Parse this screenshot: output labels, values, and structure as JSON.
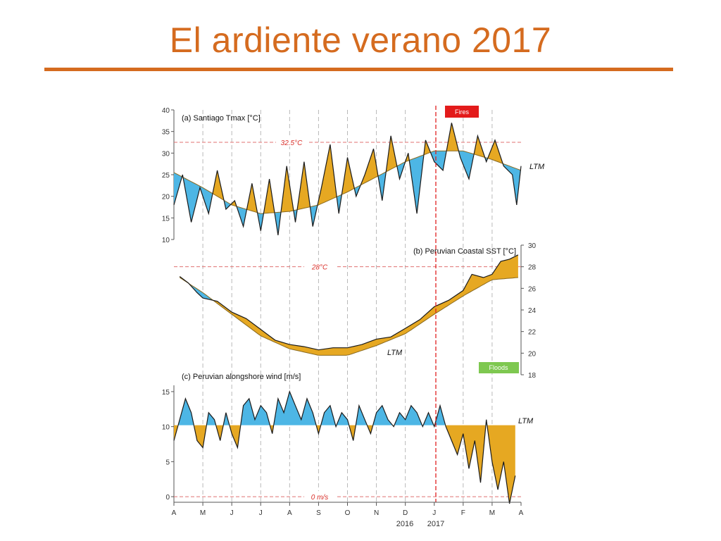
{
  "slide": {
    "title": "El ardiente verano 2017",
    "accent_color": "#d56b1f"
  },
  "chart_data": [
    {
      "id": "a",
      "type": "line",
      "title": "(a) Santiago Tmax  [°C]",
      "ylim": [
        10,
        40
      ],
      "yticks": [
        10,
        15,
        20,
        25,
        30,
        35,
        40
      ],
      "threshold": {
        "value": 32.5,
        "label": "32.5°C"
      },
      "ltm_label": "LTM",
      "event": {
        "label": "Fires",
        "color": "#e31b1b"
      },
      "colors": {
        "above": "#e6a822",
        "below": "#4db6e5"
      },
      "ltm": {
        "x": [
          0,
          1,
          2,
          3,
          4,
          5,
          6,
          7,
          8,
          9,
          10,
          11,
          12
        ],
        "values": [
          25.5,
          22.0,
          18.0,
          16.0,
          16.5,
          18.0,
          21.0,
          24.5,
          28.0,
          30.5,
          30.5,
          28.5,
          26.0
        ]
      },
      "series": {
        "x": [
          0,
          0.3,
          0.6,
          0.9,
          1.2,
          1.5,
          1.8,
          2.1,
          2.4,
          2.7,
          3.0,
          3.3,
          3.6,
          3.9,
          4.2,
          4.5,
          4.8,
          5.1,
          5.4,
          5.7,
          6.0,
          6.3,
          6.6,
          6.9,
          7.2,
          7.5,
          7.8,
          8.1,
          8.4,
          8.7,
          9.0,
          9.3,
          9.6,
          9.9,
          10.2,
          10.5,
          10.8,
          11.1,
          11.4,
          11.7,
          11.85,
          12.0
        ],
        "values": [
          18,
          25,
          14,
          22,
          16,
          26,
          17,
          19,
          13,
          23,
          12,
          24,
          11,
          27,
          14,
          28,
          13,
          22,
          32,
          16,
          29,
          20,
          25,
          31,
          19,
          34,
          24,
          30,
          16,
          33,
          28,
          26,
          37,
          29,
          24,
          34,
          28,
          33,
          27,
          25,
          18,
          27
        ]
      }
    },
    {
      "id": "b",
      "type": "line",
      "title": "(b) Peruvian Coastal SST [°C]",
      "ylim": [
        18,
        30
      ],
      "yticks": [
        18,
        20,
        22,
        24,
        26,
        28,
        30
      ],
      "threshold": {
        "value": 28,
        "label": "28°C"
      },
      "ltm_label": "LTM",
      "event": {
        "label": "Floods",
        "color": "#7ec850"
      },
      "colors": {
        "above": "#e6a822",
        "below": "#4db6e5"
      },
      "ltm": {
        "x": [
          0.2,
          1,
          2,
          3,
          4,
          5,
          6,
          7,
          8,
          9,
          10,
          11,
          11.9
        ],
        "values": [
          27.0,
          25.6,
          23.6,
          21.6,
          20.4,
          19.8,
          19.8,
          20.7,
          21.8,
          23.6,
          25.3,
          26.8,
          27.0
        ]
      },
      "series": {
        "x": [
          0.2,
          0.5,
          0.8,
          1.0,
          1.5,
          2.0,
          2.5,
          3.0,
          3.5,
          4.0,
          4.5,
          5.0,
          5.5,
          6.0,
          6.5,
          7.0,
          7.5,
          8.0,
          8.5,
          9.0,
          9.5,
          10.0,
          10.3,
          10.7,
          11.0,
          11.3,
          11.6,
          11.9
        ],
        "values": [
          27.1,
          26.5,
          25.6,
          25.1,
          24.8,
          23.8,
          23.2,
          22.2,
          21.2,
          20.8,
          20.6,
          20.3,
          20.5,
          20.5,
          20.8,
          21.3,
          21.5,
          22.3,
          23.1,
          24.3,
          24.9,
          25.8,
          27.3,
          27.0,
          27.3,
          28.5,
          28.7,
          29.1
        ]
      }
    },
    {
      "id": "c",
      "type": "line",
      "title": "(c) Peruvian alongshore wind [m/s]",
      "ylim": [
        -1.5,
        16.5
      ],
      "yticks": [
        0,
        5,
        10,
        15
      ],
      "threshold": {
        "value": 0,
        "label": "0 m/s"
      },
      "ltm_label": "LTM",
      "ltm_value": 10.2,
      "colors": {
        "above": "#4db6e5",
        "below": "#e6a822"
      },
      "series": {
        "x": [
          0,
          0.2,
          0.4,
          0.6,
          0.8,
          1.0,
          1.2,
          1.4,
          1.6,
          1.8,
          2.0,
          2.2,
          2.4,
          2.6,
          2.8,
          3.0,
          3.2,
          3.4,
          3.6,
          3.8,
          4.0,
          4.2,
          4.4,
          4.6,
          4.8,
          5.0,
          5.2,
          5.4,
          5.6,
          5.8,
          6.0,
          6.2,
          6.4,
          6.6,
          6.8,
          7.0,
          7.2,
          7.4,
          7.6,
          7.8,
          8.0,
          8.2,
          8.4,
          8.6,
          8.8,
          9.0,
          9.2,
          9.4,
          9.6,
          9.8,
          10.0,
          10.2,
          10.4,
          10.6,
          10.8,
          11.0,
          11.2,
          11.4,
          11.6,
          11.8
        ],
        "values": [
          8,
          11,
          14,
          12,
          8,
          7,
          12,
          11,
          8,
          12,
          9,
          7,
          13,
          14,
          11,
          13,
          12,
          9,
          14,
          12,
          15,
          13,
          11,
          14,
          12,
          9,
          12,
          13,
          10,
          12,
          11,
          8,
          13,
          11,
          9,
          12,
          13,
          11,
          10,
          12,
          11,
          13,
          12,
          10,
          12,
          10,
          13,
          10,
          8,
          6,
          9,
          4,
          8,
          2,
          11,
          5,
          1,
          5,
          -1,
          3
        ]
      }
    }
  ],
  "x_axis": {
    "tick_labels": [
      "A",
      "M",
      "J",
      "J",
      "A",
      "S",
      "O",
      "N",
      "D",
      "J",
      "F",
      "M",
      "A"
    ],
    "year_labels": [
      "2016",
      "2017"
    ]
  }
}
